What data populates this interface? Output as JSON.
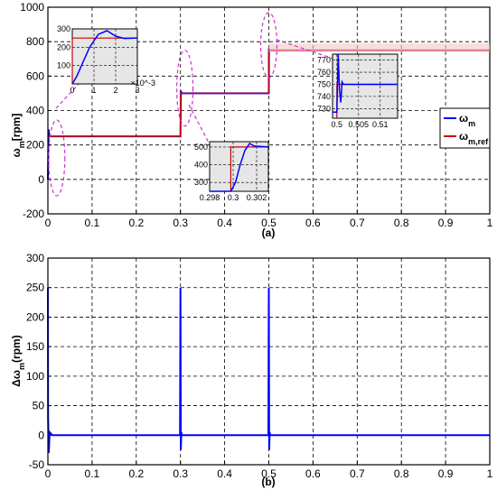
{
  "chart_data": [
    {
      "type": "line",
      "panel_label": "(a)",
      "ylabel": "ω_m[rpm]",
      "xlim": [
        0,
        1
      ],
      "ylim": [
        -200,
        1000
      ],
      "xticks": [
        "0",
        "0.1",
        "0.2",
        "0.3",
        "0.4",
        "0.5",
        "0.6",
        "0.7",
        "0.8",
        "0.9",
        "1"
      ],
      "yticks": [
        "-200",
        "0",
        "200",
        "400",
        "600",
        "800",
        "1000"
      ],
      "grid": true,
      "legend_position": "right",
      "series": [
        {
          "name": "ω_m",
          "color": "#0000ff",
          "x": [
            0,
            0.001,
            0.0015,
            0.002,
            0.0025,
            0.003,
            0.3,
            0.3002,
            0.3008,
            0.3012,
            0.302,
            0.5,
            0.5003,
            0.5006,
            0.501,
            1.0
          ],
          "y": [
            0,
            180,
            270,
            290,
            255,
            250,
            250,
            300,
            490,
            515,
            500,
            500,
            760,
            742,
            750,
            750
          ]
        },
        {
          "name": "ω_m,ref",
          "color": "#cc0000",
          "x": [
            0,
            0.3,
            0.3,
            0.5,
            0.5,
            1.0
          ],
          "y": [
            250,
            250,
            500,
            500,
            750,
            750
          ]
        }
      ],
      "legend": [
        "ω_m",
        "ω_m,ref"
      ],
      "insets": [
        {
          "xticks": [
            "0",
            "1",
            "2",
            "3"
          ],
          "yticks": [
            "300",
            "200",
            "100"
          ],
          "exponent": "×10^-3",
          "x": [
            0,
            0.2,
            0.5,
            0.8,
            1.2,
            1.6,
            2.0,
            2.4,
            3.0
          ],
          "y": [
            0,
            40,
            120,
            200,
            270,
            290,
            260,
            248,
            250
          ]
        },
        {
          "xticks": [
            "0.298",
            "0.3",
            "0.302"
          ],
          "yticks": [
            "500",
            "400",
            "300"
          ],
          "x": [
            0.298,
            0.2998,
            0.3002,
            0.3006,
            0.301,
            0.3014,
            0.3018,
            0.303
          ],
          "y": [
            250,
            250,
            300,
            400,
            480,
            520,
            505,
            500
          ]
        },
        {
          "xticks": [
            "0.5",
            "0.505",
            "0.51"
          ],
          "yticks": [
            "770",
            "760",
            "750",
            "740",
            "730"
          ],
          "x": [
            0.499,
            0.5,
            0.5003,
            0.5006,
            0.5009,
            0.5012,
            0.5015,
            0.514
          ],
          "y": [
            727,
            727,
            775,
            745,
            735,
            752,
            750,
            750
          ]
        }
      ]
    },
    {
      "type": "line",
      "panel_label": "(b)",
      "ylabel": "Δω_m(rpm)",
      "xlim": [
        0,
        1
      ],
      "ylim": [
        -50,
        300
      ],
      "xticks": [
        "0",
        "0.1",
        "0.2",
        "0.3",
        "0.4",
        "0.5",
        "0.6",
        "0.7",
        "0.8",
        "0.9",
        "1"
      ],
      "yticks": [
        "-50",
        "0",
        "50",
        "100",
        "150",
        "200",
        "250",
        "300"
      ],
      "grid": true,
      "series": [
        {
          "name": "",
          "color": "#0000ff",
          "x": [
            0,
            0.0005,
            0.002,
            0.004,
            0.01,
            0.299,
            0.3,
            0.3008,
            0.302,
            0.303,
            0.499,
            0.5,
            0.5008,
            0.502,
            0.503,
            1.0
          ],
          "y": [
            250,
            30,
            -30,
            5,
            0,
            0,
            250,
            -25,
            5,
            0,
            0,
            250,
            -25,
            5,
            0,
            0
          ]
        }
      ]
    }
  ]
}
